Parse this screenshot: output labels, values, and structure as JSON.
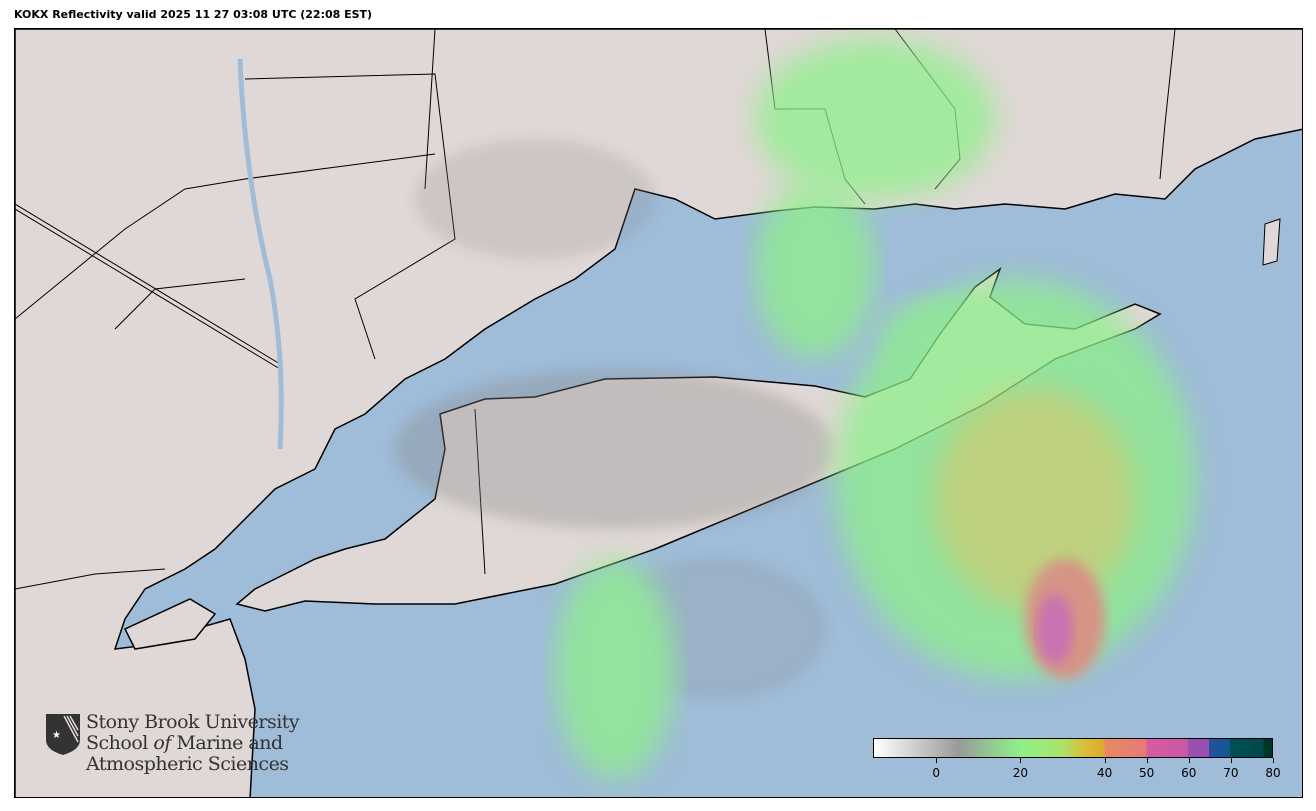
{
  "title": "KOKX Reflectivity valid 2025 11 27 03:08 UTC (22:08 EST)",
  "colors": {
    "ocean": "#9fbcd8",
    "land": "#e0d8d6",
    "border": "#000000",
    "radar_green": "#8ef08a",
    "radar_orange": "#e8876a",
    "radar_magenta": "#d85aa8",
    "radar_gray": "#8a8a8a"
  },
  "logo": {
    "icon": "sbu-shield-icon",
    "line1": "Stony Brook University",
    "line2a": "School ",
    "line2b": "of",
    "line2c": " Marine and",
    "line3": "Atmospheric Sciences"
  },
  "colorbar": {
    "units_min": -15,
    "units_max": 80,
    "ticks": [
      "0",
      "20",
      "40",
      "50",
      "60",
      "70",
      "80"
    ],
    "stops": [
      [
        -15,
        "#ffffff"
      ],
      [
        5,
        "#9a9a9a"
      ],
      [
        20,
        "#8ef08a"
      ],
      [
        30,
        "#a9e36a"
      ],
      [
        35,
        "#d8c038"
      ],
      [
        40,
        "#e0a830"
      ],
      [
        40.01,
        "#e88a60"
      ],
      [
        50,
        "#e87a78"
      ],
      [
        50.01,
        "#d85aa0"
      ],
      [
        60,
        "#c858a8"
      ],
      [
        60.01,
        "#9a50b0"
      ],
      [
        65,
        "#9a50b0"
      ],
      [
        65.01,
        "#2850a0"
      ],
      [
        70,
        "#105890"
      ],
      [
        70.01,
        "#005058"
      ],
      [
        78,
        "#004848"
      ],
      [
        78.01,
        "#003828"
      ],
      [
        80,
        "#003828"
      ]
    ]
  }
}
